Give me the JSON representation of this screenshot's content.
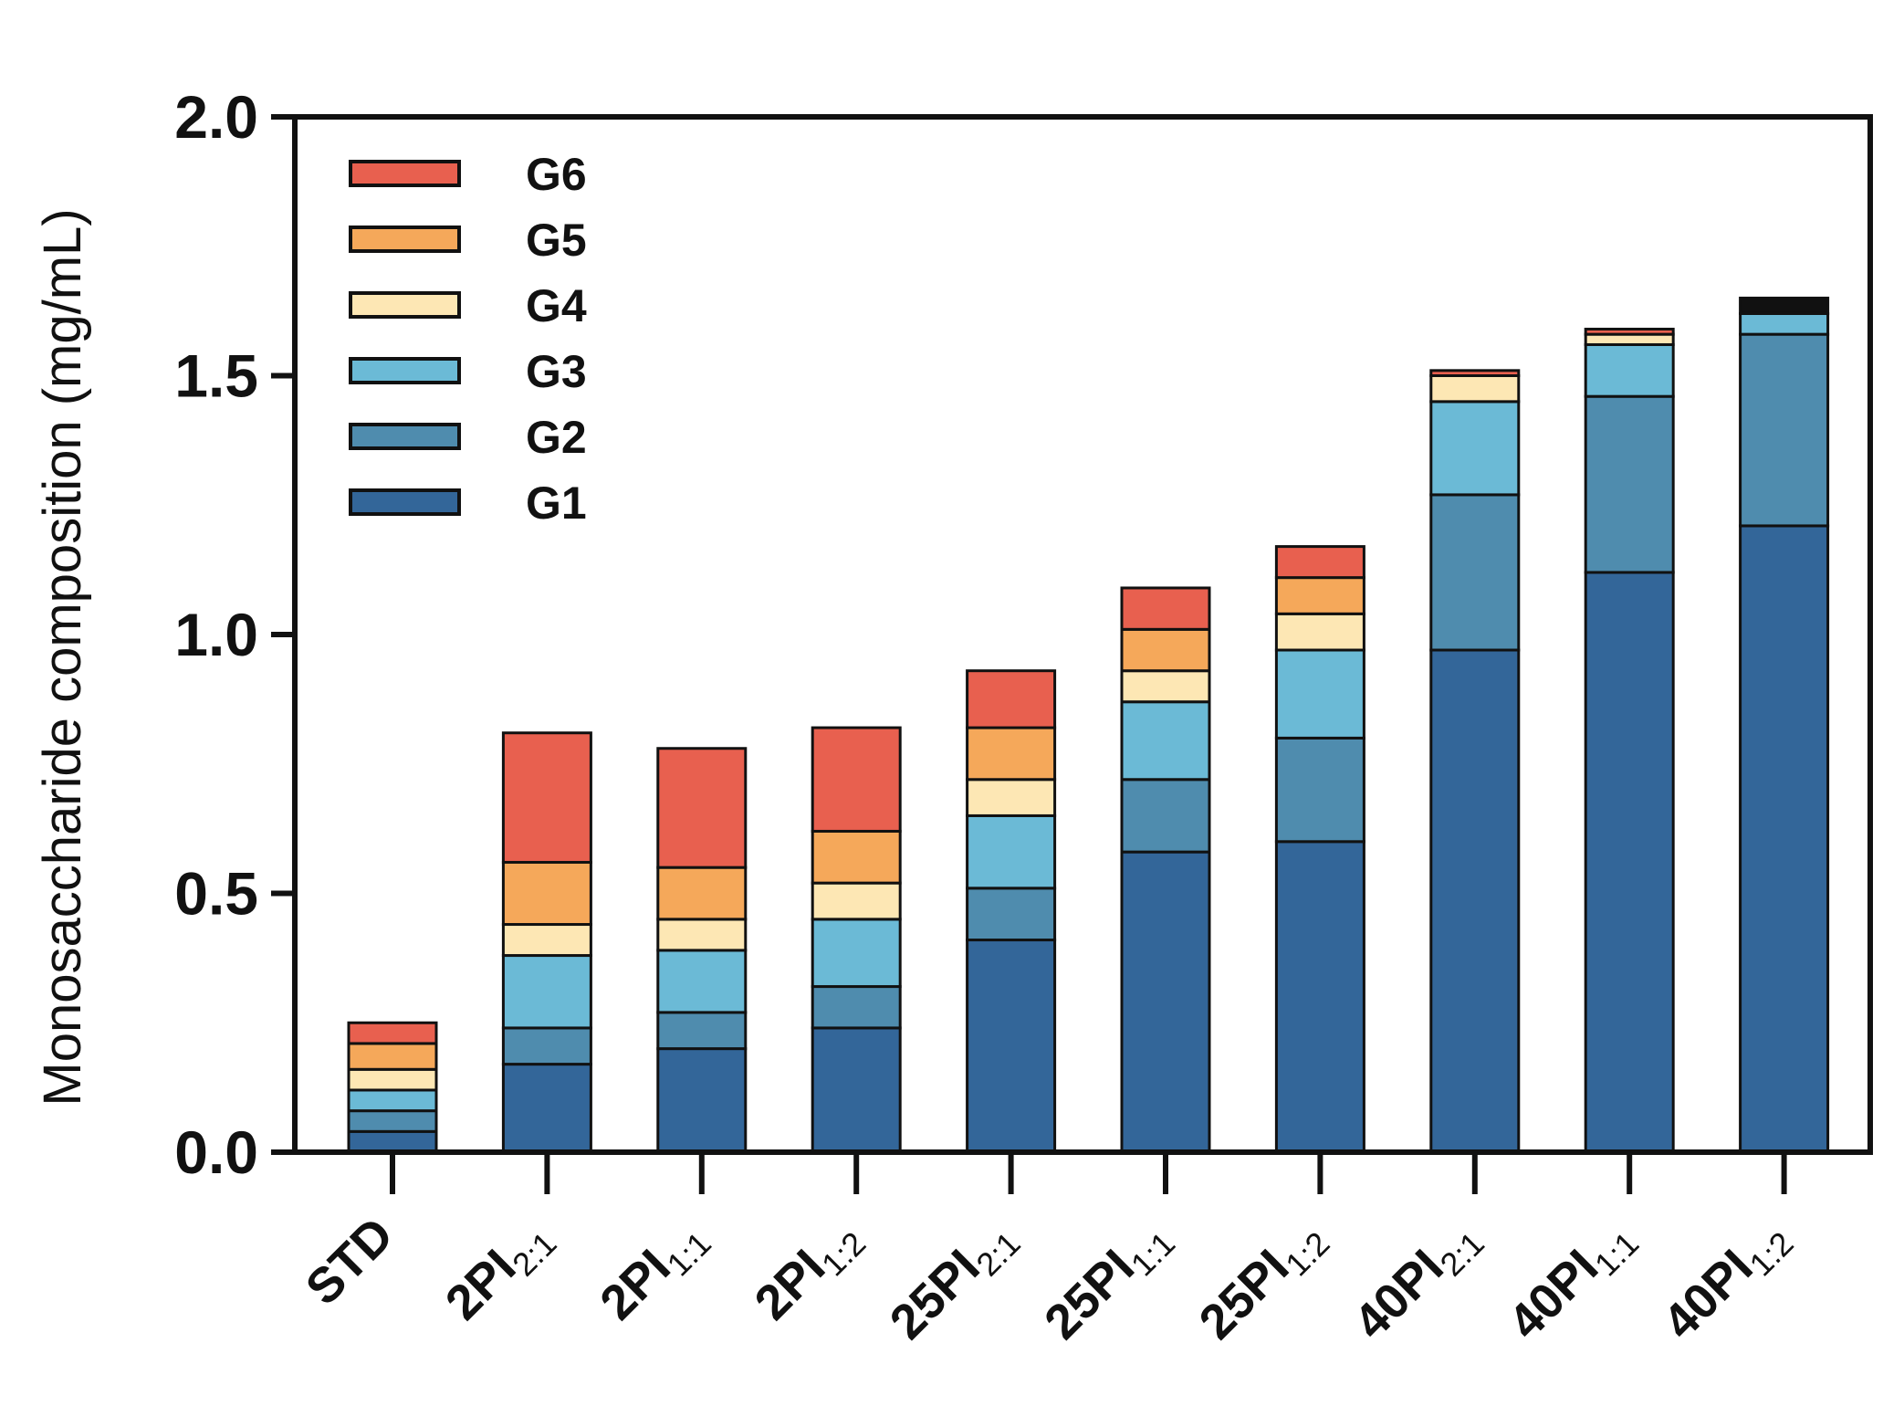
{
  "chart_data": {
    "type": "bar",
    "stacked": true,
    "ylabel": "Monosaccharide composition (mg/mL)",
    "xlabel": "",
    "ylim": [
      0,
      2.0
    ],
    "yticks": [
      0.0,
      0.5,
      1.0,
      1.5,
      2.0
    ],
    "ytick_labels": [
      "0.0",
      "0.5",
      "1.0",
      "1.5",
      "2.0"
    ],
    "legend_position": "top-left",
    "categories": [
      {
        "main": "STD",
        "sub": ""
      },
      {
        "main": "2PI",
        "sub": "2:1"
      },
      {
        "main": "2PI",
        "sub": "1:1"
      },
      {
        "main": "2PI",
        "sub": "1:2"
      },
      {
        "main": "25PI",
        "sub": "2:1"
      },
      {
        "main": "25PI",
        "sub": "1:1"
      },
      {
        "main": "25PI",
        "sub": "1:2"
      },
      {
        "main": "40PI",
        "sub": "2:1"
      },
      {
        "main": "40PI",
        "sub": "1:1"
      },
      {
        "main": "40PI",
        "sub": "1:2"
      }
    ],
    "series": [
      {
        "name": "G1",
        "color": "#336699",
        "values": [
          0.04,
          0.17,
          0.2,
          0.24,
          0.41,
          0.58,
          0.6,
          0.97,
          1.12,
          1.21
        ]
      },
      {
        "name": "G2",
        "color": "#4F8CAE",
        "values": [
          0.04,
          0.07,
          0.07,
          0.08,
          0.1,
          0.14,
          0.2,
          0.3,
          0.34,
          0.37
        ]
      },
      {
        "name": "G3",
        "color": "#6BBAD6",
        "values": [
          0.04,
          0.14,
          0.12,
          0.13,
          0.14,
          0.15,
          0.17,
          0.18,
          0.1,
          0.04
        ]
      },
      {
        "name": "G4",
        "color": "#FDE7B4",
        "values": [
          0.04,
          0.06,
          0.06,
          0.07,
          0.07,
          0.06,
          0.07,
          0.05,
          0.02,
          0.0
        ]
      },
      {
        "name": "G5",
        "color": "#F5A85A",
        "values": [
          0.05,
          0.12,
          0.1,
          0.1,
          0.1,
          0.08,
          0.07,
          0.0,
          0.0,
          0.0
        ]
      },
      {
        "name": "G6",
        "color": "#E8604F",
        "values": [
          0.04,
          0.25,
          0.23,
          0.2,
          0.11,
          0.08,
          0.06,
          0.01,
          0.01,
          0.0
        ]
      }
    ],
    "extra_top_segment": {
      "name": "",
      "color": "#111111",
      "values": [
        0,
        0,
        0,
        0,
        0,
        0,
        0,
        0,
        0,
        0.03
      ]
    },
    "legend_order": [
      "G6",
      "G5",
      "G4",
      "G3",
      "G2",
      "G1"
    ]
  }
}
